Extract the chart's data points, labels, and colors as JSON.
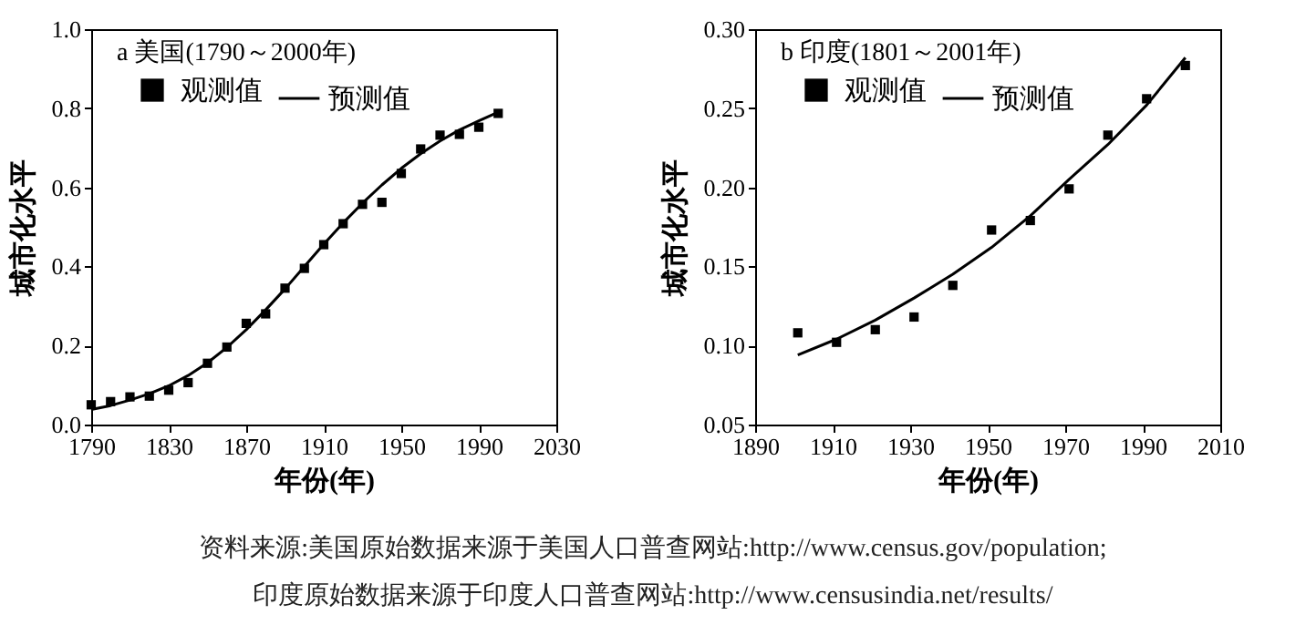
{
  "chart_data": [
    {
      "type": "scatter",
      "title": "a 美国(1790～2000年)",
      "xlabel": "年份(年)",
      "ylabel": "城市化水平",
      "legend": "top left",
      "grid": false,
      "xlim": [
        1790,
        2030
      ],
      "xticks": [
        1790,
        1830,
        1870,
        1910,
        1950,
        1990,
        2030
      ],
      "ylim": [
        0,
        1
      ],
      "yticks": [
        {
          "value": 0,
          "label": "0.0"
        },
        0.2,
        0.4,
        0.6,
        0.8,
        {
          "value": 1,
          "label": "1.0"
        }
      ],
      "annotations": [
        "资料来源:美国原始数据来源于美国人口普查网站:http://www.census.gov/population;",
        "印度原始数据来源于印度人口普查网站:http://www.censusindia.net/results/"
      ],
      "series": [
        {
          "name": "观测值",
          "type": "scatter",
          "marker": "square",
          "color": "#000000",
          "x": [
            1790,
            1800,
            1810,
            1820,
            1830,
            1840,
            1850,
            1860,
            1870,
            1880,
            1890,
            1900,
            1910,
            1920,
            1930,
            1940,
            1950,
            1960,
            1970,
            1980,
            1990,
            2000
          ],
          "values": [
            0.05,
            0.058,
            0.07,
            0.072,
            0.087,
            0.106,
            0.155,
            0.196,
            0.256,
            0.28,
            0.345,
            0.395,
            0.455,
            0.508,
            0.557,
            0.562,
            0.635,
            0.697,
            0.732,
            0.734,
            0.752,
            0.787
          ]
        },
        {
          "name": "预测值",
          "type": "line",
          "line_style": "solid",
          "color": "#000000",
          "x": [
            1790,
            1800,
            1810,
            1820,
            1830,
            1840,
            1850,
            1860,
            1870,
            1880,
            1890,
            1900,
            1910,
            1920,
            1930,
            1940,
            1950,
            1960,
            1970,
            1980,
            1990,
            2000
          ],
          "values": [
            0.038,
            0.048,
            0.062,
            0.078,
            0.098,
            0.124,
            0.156,
            0.195,
            0.24,
            0.29,
            0.343,
            0.4,
            0.456,
            0.51,
            0.56,
            0.606,
            0.648,
            0.685,
            0.717,
            0.745,
            0.768,
            0.79
          ]
        }
      ]
    },
    {
      "type": "scatter",
      "title": "b 印度(1801～2001年)",
      "xlabel": "年份(年)",
      "ylabel": "城市化水平",
      "legend": "top left",
      "grid": false,
      "xlim": [
        1890,
        2010
      ],
      "xticks": [
        1890,
        1910,
        1930,
        1950,
        1970,
        1990,
        2010
      ],
      "ylim": [
        0.05,
        0.3
      ],
      "yticks": [
        {
          "value": 0.05,
          "label": "0.05"
        },
        {
          "value": 0.1,
          "label": "0.10"
        },
        {
          "value": 0.15,
          "label": "0.15"
        },
        {
          "value": 0.2,
          "label": "0.20"
        },
        {
          "value": 0.25,
          "label": "0.25"
        },
        {
          "value": 0.3,
          "label": "0.30"
        }
      ],
      "series": [
        {
          "name": "观测值",
          "type": "scatter",
          "marker": "square",
          "color": "#000000",
          "x": [
            1901,
            1911,
            1921,
            1931,
            1941,
            1951,
            1961,
            1971,
            1981,
            1991,
            2001
          ],
          "values": [
            0.108,
            0.102,
            0.11,
            0.118,
            0.138,
            0.173,
            0.179,
            0.199,
            0.233,
            0.256,
            0.277
          ]
        },
        {
          "name": "预测值",
          "type": "line",
          "line_style": "solid",
          "color": "#000000",
          "x": [
            1901,
            1911,
            1921,
            1931,
            1941,
            1951,
            1961,
            1971,
            1981,
            1991,
            2001
          ],
          "values": [
            0.094,
            0.104,
            0.116,
            0.13,
            0.145,
            0.162,
            0.182,
            0.205,
            0.227,
            0.252,
            0.282
          ]
        }
      ]
    }
  ]
}
